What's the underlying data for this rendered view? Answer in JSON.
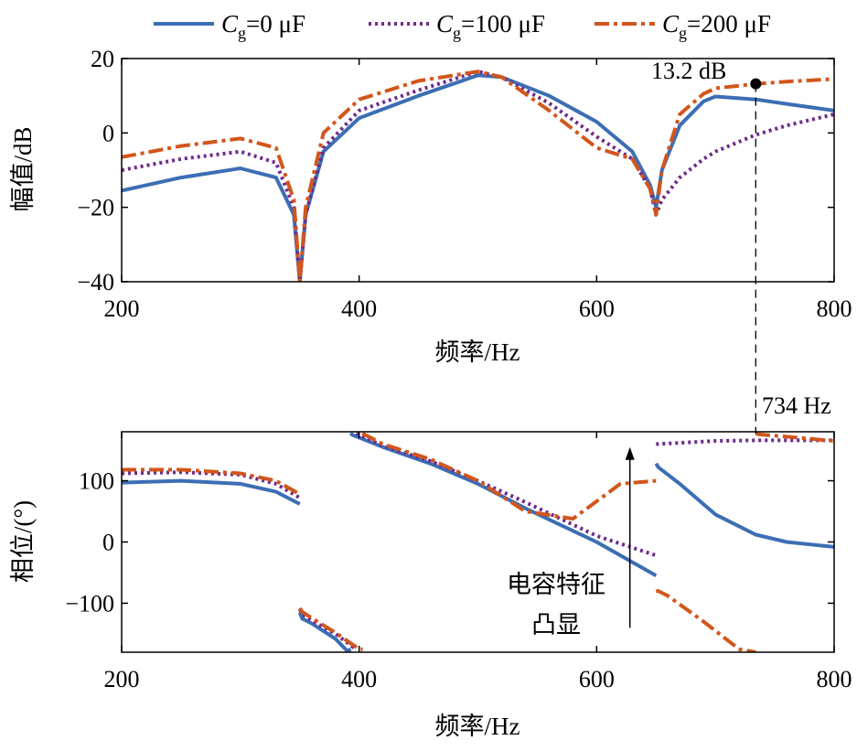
{
  "legend": [
    {
      "prefix": "C",
      "sub": "g",
      "suffix": "=0 μF",
      "color": "#3c6eb4",
      "dash": "solid"
    },
    {
      "prefix": "C",
      "sub": "g",
      "suffix": "=100 μF",
      "color": "#6f2a8c",
      "dash": "dotted"
    },
    {
      "prefix": "C",
      "sub": "g",
      "suffix": "=200 μF",
      "color": "#d2561c",
      "dash": "dashdot"
    }
  ],
  "chart_data": [
    {
      "type": "line",
      "xlabel": "频率/Hz",
      "ylabel": "幅值/dB",
      "xlim": [
        200,
        800
      ],
      "ylim": [
        -40,
        20
      ],
      "xticks": [
        "200",
        "400",
        "600",
        "800"
      ],
      "yticks": [
        "20",
        "0",
        "−20",
        "−40"
      ],
      "series": [
        {
          "name": "Cg=0 μF",
          "x": [
            200,
            250,
            300,
            330,
            345,
            350,
            355,
            370,
            400,
            450,
            500,
            520,
            560,
            600,
            630,
            645,
            650,
            655,
            670,
            690,
            700,
            734,
            760,
            800
          ],
          "y": [
            -15.5,
            -12,
            -9.5,
            -12,
            -22,
            -40,
            -22,
            -5,
            4,
            10,
            15.5,
            15,
            10,
            3,
            -5,
            -14,
            -20,
            -10,
            2,
            8.5,
            9.8,
            9,
            7.8,
            6
          ]
        },
        {
          "name": "Cg=100 μF",
          "x": [
            200,
            250,
            300,
            330,
            345,
            350,
            355,
            370,
            400,
            450,
            500,
            520,
            560,
            600,
            630,
            645,
            650,
            655,
            670,
            690,
            700,
            734,
            760,
            800
          ],
          "y": [
            -10,
            -7,
            -5,
            -8,
            -20,
            -40,
            -22,
            -4,
            6,
            11.5,
            16.5,
            15,
            8,
            -1,
            -7,
            -15,
            -22,
            -18,
            -12,
            -7,
            -5,
            -0.5,
            2,
            5
          ]
        },
        {
          "name": "Cg=200 μF",
          "x": [
            200,
            250,
            300,
            330,
            345,
            350,
            355,
            370,
            400,
            450,
            500,
            520,
            560,
            600,
            630,
            645,
            650,
            655,
            670,
            690,
            700,
            734,
            760,
            800
          ],
          "y": [
            -6.5,
            -3.5,
            -1.5,
            -4,
            -18,
            -40,
            -20,
            0,
            9,
            14,
            16.5,
            15,
            6,
            -4,
            -7,
            -15,
            -22,
            -10,
            5,
            10.5,
            12,
            13.2,
            13.8,
            14.5
          ]
        }
      ]
    },
    {
      "type": "line",
      "xlabel": "频率/Hz",
      "ylabel": "相位/(°)",
      "xlim": [
        200,
        800
      ],
      "ylim": [
        -180,
        180
      ],
      "xticks": [
        "200",
        "400",
        "600",
        "800"
      ],
      "yticks": [
        "100",
        "0",
        "−100"
      ],
      "series": [
        {
          "name": "Cg=0 μF",
          "segments": [
            {
              "x": [
                200,
                250,
                300,
                330,
                350
              ],
              "y": [
                97,
                100,
                95,
                82,
                62
              ]
            },
            {
              "x": [
                350,
                352,
                360,
                380,
                390,
                393
              ],
              "y": [
                -115,
                -125,
                -133,
                -158,
                -178,
                -175
              ]
            },
            {
              "x": [
                393,
                394,
                420,
                460,
                500,
                540,
                600,
                650
              ],
              "y": [
                178,
                175,
                155,
                128,
                95,
                55,
                0,
                -55
              ]
            },
            {
              "x": [
                650,
                652,
                670,
                700,
                734,
                760,
                800
              ],
              "y": [
                128,
                122,
                95,
                45,
                12,
                0,
                -8
              ]
            }
          ]
        },
        {
          "name": "Cg=100 μF",
          "segments": [
            {
              "x": [
                200,
                250,
                300,
                330,
                350
              ],
              "y": [
                112,
                114,
                110,
                95,
                72
              ]
            },
            {
              "x": [
                350,
                352,
                360,
                380,
                395,
                398
              ],
              "y": [
                -110,
                -118,
                -128,
                -150,
                -172,
                -172
              ]
            },
            {
              "x": [
                398,
                399,
                420,
                460,
                500,
                540,
                600,
                650
              ],
              "y": [
                178,
                176,
                157,
                132,
                100,
                65,
                10,
                -22
              ]
            },
            {
              "x": [
                650,
                652,
                670,
                700,
                734,
                760,
                800
              ],
              "y": [
                160,
                160,
                162,
                165,
                166,
                166,
                166
              ]
            }
          ]
        },
        {
          "name": "Cg=200 μF",
          "segments": [
            {
              "x": [
                200,
                250,
                300,
                330,
                350
              ],
              "y": [
                118,
                118,
                112,
                100,
                78
              ]
            },
            {
              "x": [
                350,
                352,
                360,
                380,
                400,
                403
              ],
              "y": [
                -108,
                -114,
                -124,
                -148,
                -175,
                -175
              ]
            },
            {
              "x": [
                403,
                404,
                420,
                460,
                500,
                540,
                580,
                620,
                650
              ],
              "y": [
                178,
                176,
                160,
                135,
                100,
                50,
                38,
                95,
                100
              ]
            },
            {
              "x": [
                650,
                652,
                660,
                690,
                720,
                734
              ],
              "y": [
                -80,
                -80,
                -88,
                -130,
                -175,
                -180
              ]
            },
            {
              "x": [
                734,
                736,
                760,
                800
              ],
              "y": [
                178,
                176,
                172,
                165
              ]
            }
          ]
        }
      ]
    }
  ],
  "annotations": {
    "peak_label": "13.2 dB",
    "freq_label": "734 Hz",
    "peak_point": {
      "x": 734,
      "y": 13.2
    },
    "cap_text_line1": "电容特征",
    "cap_text_line2": "凸显",
    "arrow": {
      "x": 628,
      "y_from": -140,
      "y_to": 155
    }
  }
}
